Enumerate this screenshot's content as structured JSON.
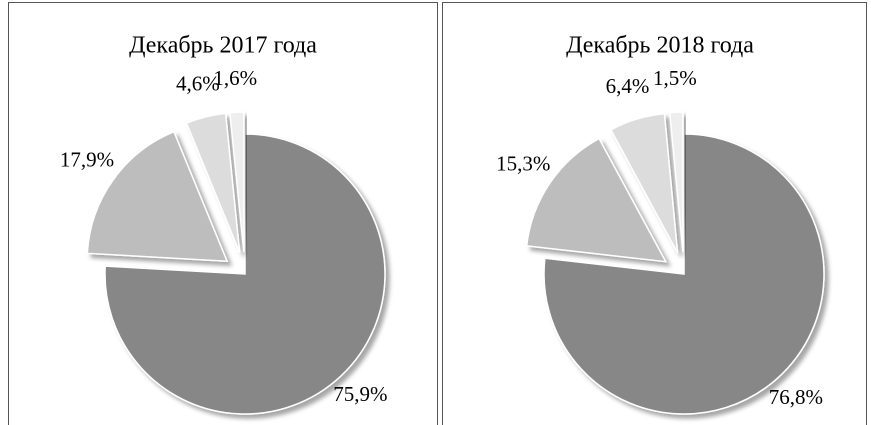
{
  "chart_data": [
    {
      "type": "pie",
      "title": "Декабрь 2017 года",
      "values": [
        75.9,
        17.9,
        4.6,
        1.6
      ],
      "value_labels": [
        "75,9%",
        "17,9%",
        "4,6%",
        "1,6%"
      ],
      "colors": [
        "#878787",
        "#bdbdbd",
        "#dcdcdc",
        "#eeeeee"
      ]
    },
    {
      "type": "pie",
      "title": "Декабрь 2018 года",
      "values": [
        76.8,
        15.3,
        6.4,
        1.5
      ],
      "value_labels": [
        "76,8%",
        "15,3%",
        "6,4%",
        "1,5%"
      ],
      "colors": [
        "#878787",
        "#bdbdbd",
        "#dcdcdc",
        "#eeeeee"
      ]
    }
  ]
}
